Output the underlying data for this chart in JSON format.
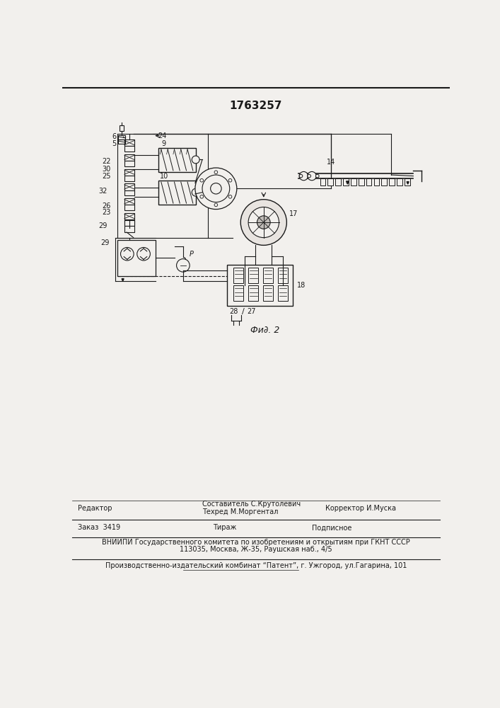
{
  "title_number": "1763257",
  "fig_label": "Фи∂. 2",
  "bg_color": "#f2f0ed",
  "line_color": "#1a1a1a",
  "footer": {
    "editor_label": "Редактор",
    "composer": "Составитель С.Крутолевич",
    "techred": "Техред М.Моргентал",
    "corrector": "Корректор И.Муска",
    "order_label": "Заказ  3419",
    "tirazh_label": "Тираж",
    "podpisnoe_label": "Подписное",
    "vniip1": "ВНИИПИ Государственного комитета по изобретениям и открытиям при ГКНТ СССР",
    "vniip2": "113035, Москва, Ж-35, Раушская наб., 4/5",
    "publisher": "Производственно-издательский комбинат “Патент”, г. Ужгород, ул.Гагарина, 101"
  }
}
